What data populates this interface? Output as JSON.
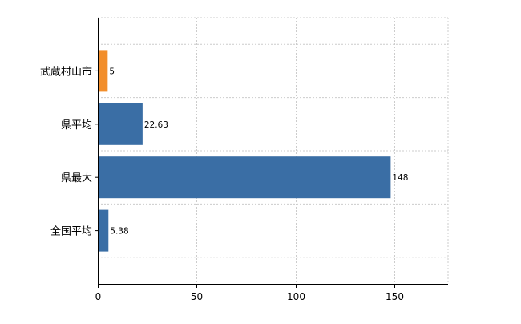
{
  "chart_data": {
    "type": "bar",
    "orientation": "horizontal",
    "title": "",
    "xlabel": "",
    "ylabel": "",
    "categories": [
      "武蔵村山市",
      "県平均",
      "県最大",
      "全国平均"
    ],
    "values": [
      5,
      22.63,
      148,
      5.38
    ],
    "value_labels": [
      "5",
      "22.63",
      "148",
      "5.38"
    ],
    "bar_colors": [
      "#F28E2B",
      "#3A6EA5",
      "#3A6EA5",
      "#3A6EA5"
    ],
    "xlim": [
      0,
      177
    ],
    "xticks": [
      0,
      50,
      100,
      150
    ],
    "xtick_labels": [
      "0",
      "50",
      "100",
      "150"
    ],
    "grid": true,
    "legend": "none"
  },
  "colors": {
    "highlight": "#F28E2B",
    "bar": "#3A6EA5",
    "grid": "#CCCCCC",
    "axis": "#000000"
  }
}
